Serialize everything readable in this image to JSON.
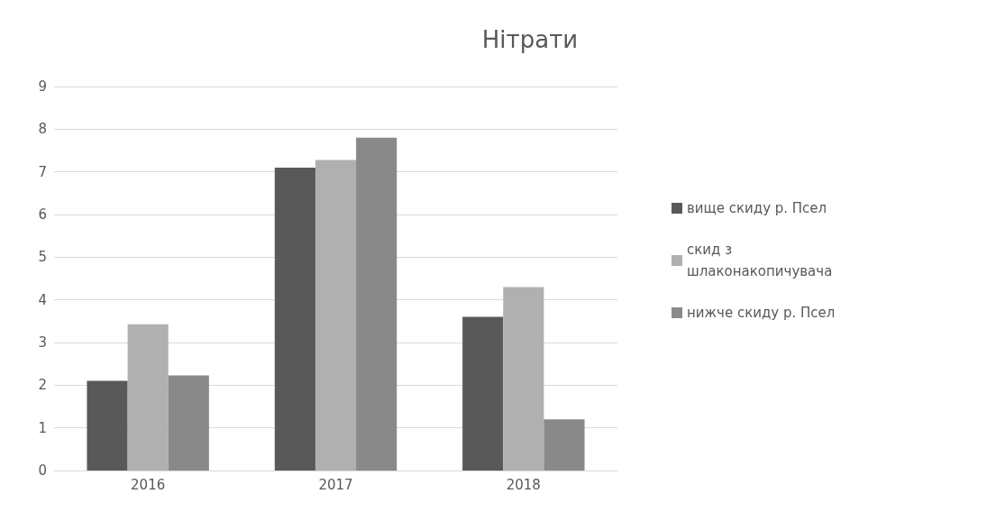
{
  "chart_data": {
    "type": "bar",
    "title": "Нітрати",
    "categories": [
      "2016",
      "2017",
      "2018"
    ],
    "series": [
      {
        "name": "вище скиду р. Псел",
        "color": "#595959",
        "values": [
          2.1,
          7.1,
          3.6
        ]
      },
      {
        "name": "скид з шлаконакопичувача",
        "color": "#b0b0b0",
        "values": [
          3.43,
          7.28,
          4.3
        ]
      },
      {
        "name": "нижче скиду р. Псел",
        "color": "#898989",
        "values": [
          2.23,
          7.8,
          1.2
        ]
      }
    ],
    "ylim": [
      0,
      9
    ],
    "yticks": [
      0,
      1,
      2,
      3,
      4,
      5,
      6,
      7,
      8,
      9
    ],
    "grid": "y",
    "legend": "right"
  }
}
